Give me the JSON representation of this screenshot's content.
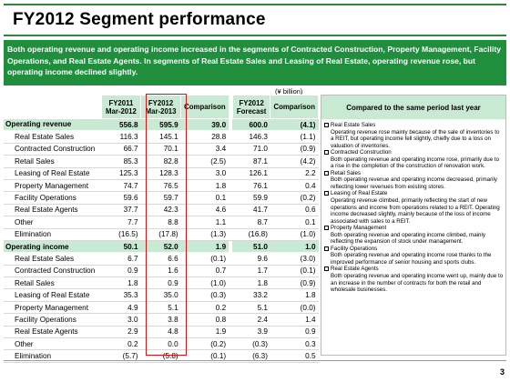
{
  "title": "FY2012 Segment performance",
  "summary": "Both operating revenue and operating income increased in the segments of Contracted Construction, Property Management, Facility Operations, and Real Estate Agents. In segments of Real Estate Sales and Leasing of Real Estate, operating revenue rose, but operating income declined slightly.",
  "unit": "(¥ billion)",
  "headers": {
    "fy2011": "FY2011\nMar-2012",
    "fy2012": "FY2012\nMar-2013",
    "comparison": "Comparison",
    "forecast": "FY2012\nForecast",
    "comparison2": "Comparison",
    "compared": "Compared to the same period last year"
  },
  "rows": [
    {
      "label": "Operating revenue",
      "total": true,
      "fy11": "556.8",
      "fy12": "595.9",
      "cmp": "39.0",
      "fc": "600.0",
      "cmp2": "(4.1)"
    },
    {
      "label": "Real Estate Sales",
      "total": false,
      "fy11": "116.3",
      "fy12": "145.1",
      "cmp": "28.8",
      "fc": "146.3",
      "cmp2": "(1.1)"
    },
    {
      "label": "Contracted Construction",
      "total": false,
      "fy11": "66.7",
      "fy12": "70.1",
      "cmp": "3.4",
      "fc": "71.0",
      "cmp2": "(0.9)"
    },
    {
      "label": "Retail Sales",
      "total": false,
      "fy11": "85.3",
      "fy12": "82.8",
      "cmp": "(2.5)",
      "fc": "87.1",
      "cmp2": "(4.2)"
    },
    {
      "label": "Leasing of Real Estate",
      "total": false,
      "fy11": "125.3",
      "fy12": "128.3",
      "cmp": "3.0",
      "fc": "126.1",
      "cmp2": "2.2"
    },
    {
      "label": "Property Management",
      "total": false,
      "fy11": "74.7",
      "fy12": "76.5",
      "cmp": "1.8",
      "fc": "76.1",
      "cmp2": "0.4"
    },
    {
      "label": "Facility Operations",
      "total": false,
      "fy11": "59.6",
      "fy12": "59.7",
      "cmp": "0.1",
      "fc": "59.9",
      "cmp2": "(0.2)"
    },
    {
      "label": "Real Estate Agents",
      "total": false,
      "fy11": "37.7",
      "fy12": "42.3",
      "cmp": "4.6",
      "fc": "41.7",
      "cmp2": "0.6"
    },
    {
      "label": "Other",
      "total": false,
      "fy11": "7.7",
      "fy12": "8.8",
      "cmp": "1.1",
      "fc": "8.7",
      "cmp2": "0.1"
    },
    {
      "label": "Elimination",
      "total": false,
      "fy11": "(16.5)",
      "fy12": "(17.8)",
      "cmp": "(1.3)",
      "fc": "(16.8)",
      "cmp2": "(1.0)"
    },
    {
      "label": "Operating income",
      "total": true,
      "fy11": "50.1",
      "fy12": "52.0",
      "cmp": "1.9",
      "fc": "51.0",
      "cmp2": "1.0"
    },
    {
      "label": "Real Estate Sales",
      "total": false,
      "fy11": "6.7",
      "fy12": "6.6",
      "cmp": "(0.1)",
      "fc": "9.6",
      "cmp2": "(3.0)"
    },
    {
      "label": "Contracted Construction",
      "total": false,
      "fy11": "0.9",
      "fy12": "1.6",
      "cmp": "0.7",
      "fc": "1.7",
      "cmp2": "(0.1)"
    },
    {
      "label": "Retail Sales",
      "total": false,
      "fy11": "1.8",
      "fy12": "0.9",
      "cmp": "(1.0)",
      "fc": "1.8",
      "cmp2": "(0.9)"
    },
    {
      "label": "Leasing of Real Estate",
      "total": false,
      "fy11": "35.3",
      "fy12": "35.0",
      "cmp": "(0.3)",
      "fc": "33.2",
      "cmp2": "1.8"
    },
    {
      "label": "Property Management",
      "total": false,
      "fy11": "4.9",
      "fy12": "5.1",
      "cmp": "0.2",
      "fc": "5.1",
      "cmp2": "(0.0)"
    },
    {
      "label": "Facility Operations",
      "total": false,
      "fy11": "3.0",
      "fy12": "3.8",
      "cmp": "0.8",
      "fc": "2.4",
      "cmp2": "1.4"
    },
    {
      "label": "Real Estate Agents",
      "total": false,
      "fy11": "2.9",
      "fy12": "4.8",
      "cmp": "1.9",
      "fc": "3.9",
      "cmp2": "0.9"
    },
    {
      "label": "Other",
      "total": false,
      "fy11": "0.2",
      "fy12": "0.0",
      "cmp": "(0.2)",
      "fc": "(0.3)",
      "cmp2": "0.3"
    },
    {
      "label": "Elimination",
      "total": false,
      "fy11": "(5.7)",
      "fy12": "(5.8)",
      "cmp": "(0.1)",
      "fc": "(6.3)",
      "cmp2": "0.5"
    }
  ],
  "comments": [
    {
      "title": "Real Estate Sales",
      "text": "Operating revenue rose mainly because of the sale of inventories to a REIT, but operating income fell slightly, chiefly due to a loss on valuation of inventories."
    },
    {
      "title": "Contracted Construction",
      "text": "Both operating revenue and operating income rose, primarily due to a rise in the completion of the construction of renovation work."
    },
    {
      "title": "Retail Sales",
      "text": "Both operating revenue and operating income decreased, primarily reflecting lower revenues from existing stores."
    },
    {
      "title": "Leasing of Real Estate",
      "text": "Operating revenue climbed, primarily reflecting the start of new operations and income from operations related to a REIT. Operating income decreased slightly, mainly because of the loss of income associated with sales to a REIT."
    },
    {
      "title": "Property Management",
      "text": "Both operating revenue and operating income climbed, mainly reflecting the expansion of stock under management."
    },
    {
      "title": "Facility Operations",
      "text": "Both operating revenue and operating income rose thanks to the improved performance of senior housing and sports clubs."
    },
    {
      "title": "Real Estate Agents",
      "text": "Both operating revenue and operating income went up, mainly due to an increase in the number of contracts for both the retail and wholesale businesses."
    }
  ],
  "page_number": "3",
  "colors": {
    "accent_green": "#1f8f3d",
    "header_bg": "#c9ead2",
    "highlight": "#e01010"
  }
}
